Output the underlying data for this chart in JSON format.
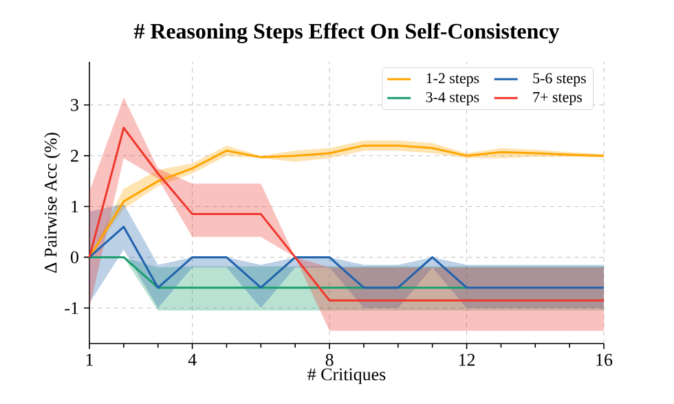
{
  "chart_data": {
    "type": "line",
    "title": "# Reasoning Steps Effect On Self-Consistency",
    "xlabel": "# Critiques",
    "ylabel": "Δ Pairwise Acc (%)",
    "x": [
      1,
      2,
      3,
      4,
      5,
      6,
      7,
      8,
      9,
      10,
      11,
      12,
      13,
      14,
      15,
      16
    ],
    "series": [
      {
        "name": "1-2 steps",
        "color": "#ffa500",
        "values": [
          0,
          1.1,
          1.5,
          1.75,
          2.1,
          1.97,
          2.0,
          2.05,
          2.2,
          2.2,
          2.15,
          2.0,
          2.07,
          2.05,
          2.02,
          2.0
        ],
        "lower": [
          0,
          0.95,
          1.4,
          1.65,
          2.0,
          1.95,
          1.88,
          1.95,
          2.1,
          2.1,
          2.05,
          1.95,
          1.95,
          1.98,
          1.98,
          1.97
        ],
        "upper": [
          0,
          1.35,
          1.72,
          1.85,
          2.2,
          2.0,
          2.1,
          2.15,
          2.3,
          2.3,
          2.25,
          2.05,
          2.15,
          2.12,
          2.07,
          2.03
        ]
      },
      {
        "name": "3-4 steps",
        "color": "#1a9e6e",
        "values": [
          0,
          0,
          -0.6,
          -0.6,
          -0.6,
          -0.6,
          -0.6,
          -0.6,
          -0.6,
          -0.6,
          -0.6,
          -0.6,
          null,
          null,
          null,
          null
        ],
        "lower": [
          0,
          0,
          -1.05,
          -1.05,
          -1.05,
          -1.05,
          -1.05,
          -1.05,
          -1.05,
          -1.05,
          -1.05,
          -1.05,
          -1.05,
          -1.05,
          -1.05,
          -1.05
        ],
        "upper": [
          0,
          0,
          -0.2,
          -0.18,
          -0.18,
          -0.18,
          -0.18,
          -0.18,
          -0.18,
          -0.18,
          -0.18,
          -0.18,
          -0.18,
          -0.18,
          -0.18,
          -0.18
        ]
      },
      {
        "name": "5-6 steps",
        "color": "#2062ad",
        "values": [
          0,
          0.6,
          -0.6,
          0,
          0,
          -0.6,
          0,
          0,
          -0.6,
          -0.6,
          0,
          -0.6,
          -0.6,
          -0.6,
          -0.6,
          -0.6
        ],
        "lower": [
          -0.9,
          0.15,
          -1.0,
          -0.2,
          -0.2,
          -1.0,
          -0.2,
          -0.2,
          -1.0,
          -1.0,
          -0.2,
          -1.0,
          -1.0,
          -1.0,
          -1.0,
          -1.0
        ],
        "upper": [
          0.9,
          1.05,
          -0.15,
          0,
          0,
          -0.15,
          0,
          0,
          -0.15,
          -0.15,
          0,
          -0.15,
          -0.15,
          -0.15,
          -0.15,
          -0.15
        ]
      },
      {
        "name": "7+ steps",
        "color": "#f0362b",
        "values": [
          0,
          2.55,
          1.65,
          0.85,
          0.85,
          0.85,
          0,
          -0.85,
          -0.85,
          -0.85,
          -0.85,
          -0.85,
          -0.85,
          -0.85,
          -0.85,
          -0.85
        ],
        "lower": [
          -1.0,
          1.95,
          1.55,
          0.4,
          0.4,
          0.4,
          0,
          -1.45,
          -1.45,
          -1.45,
          -1.45,
          -1.45,
          -1.45,
          -1.45,
          -1.45,
          -1.45
        ],
        "upper": [
          1.3,
          3.15,
          1.75,
          1.45,
          1.45,
          1.45,
          0,
          -0.2,
          -0.2,
          -0.2,
          -0.2,
          -0.2,
          -0.2,
          -0.2,
          -0.2,
          -0.2
        ]
      }
    ],
    "xlim": [
      1,
      16
    ],
    "ylim": [
      -1.7,
      3.85
    ],
    "xticks": [
      1,
      {
        "value": 2,
        "label": null
      },
      {
        "value": 3,
        "label": null
      },
      4,
      {
        "value": 5,
        "label": null
      },
      {
        "value": 6,
        "label": null
      },
      {
        "value": 7,
        "label": null
      },
      8,
      {
        "value": 9,
        "label": null
      },
      {
        "value": 10,
        "label": null
      },
      {
        "value": 11,
        "label": null
      },
      12,
      {
        "value": 13,
        "label": null
      },
      {
        "value": 14,
        "label": null
      },
      {
        "value": 15,
        "label": null
      },
      16
    ],
    "yticks": [
      -1,
      0,
      1,
      2,
      3
    ],
    "grid": true,
    "legend": "top right"
  }
}
